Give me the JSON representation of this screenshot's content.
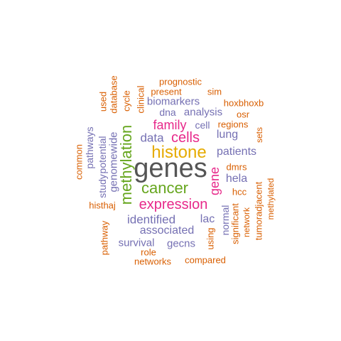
{
  "colors": {
    "orange": "#d95f02",
    "purple": "#7570b3",
    "magenta": "#e7298a",
    "green": "#66a61e",
    "gold": "#e6ab02",
    "gray": "#555555"
  },
  "words": [
    {
      "id": "genes",
      "text": "genes",
      "color": "gray"
    },
    {
      "id": "histone",
      "text": "histone",
      "color": "gold"
    },
    {
      "id": "cancer",
      "text": "cancer",
      "color": "green"
    },
    {
      "id": "methylation",
      "text": "methylation",
      "color": "green"
    },
    {
      "id": "expression",
      "text": "expression",
      "color": "magenta"
    },
    {
      "id": "cells",
      "text": "cells",
      "color": "magenta"
    },
    {
      "id": "family",
      "text": "family",
      "color": "magenta"
    },
    {
      "id": "gene",
      "text": "gene",
      "color": "magenta"
    },
    {
      "id": "data",
      "text": "data",
      "color": "purple"
    },
    {
      "id": "patients",
      "text": "patients",
      "color": "purple"
    },
    {
      "id": "identified",
      "text": "identified",
      "color": "purple"
    },
    {
      "id": "associated",
      "text": "associated",
      "color": "purple"
    },
    {
      "id": "biomarkers",
      "text": "biomarkers",
      "color": "purple"
    },
    {
      "id": "analysis",
      "text": "analysis",
      "color": "purple"
    },
    {
      "id": "lung",
      "text": "lung",
      "color": "purple"
    },
    {
      "id": "hela",
      "text": "hela",
      "color": "purple"
    },
    {
      "id": "genomewide",
      "text": "genomewide",
      "color": "purple"
    },
    {
      "id": "survival",
      "text": "survival",
      "color": "purple"
    },
    {
      "id": "gecns",
      "text": "gecns",
      "color": "purple"
    },
    {
      "id": "lac",
      "text": "lac",
      "color": "purple"
    },
    {
      "id": "dna",
      "text": "dna",
      "color": "purple"
    },
    {
      "id": "cell",
      "text": "cell",
      "color": "purple"
    },
    {
      "id": "pathways",
      "text": "pathways",
      "color": "purple"
    },
    {
      "id": "potential",
      "text": "potential",
      "color": "purple"
    },
    {
      "id": "study",
      "text": "study",
      "color": "purple"
    },
    {
      "id": "normal",
      "text": "normal",
      "color": "purple"
    },
    {
      "id": "prognostic",
      "text": "prognostic",
      "color": "orange"
    },
    {
      "id": "present",
      "text": "present",
      "color": "orange"
    },
    {
      "id": "sim",
      "text": "sim",
      "color": "orange"
    },
    {
      "id": "hoxbhoxb",
      "text": "hoxbhoxb",
      "color": "orange"
    },
    {
      "id": "osr",
      "text": "osr",
      "color": "orange"
    },
    {
      "id": "regions",
      "text": "regions",
      "color": "orange"
    },
    {
      "id": "sets",
      "text": "sets",
      "color": "orange"
    },
    {
      "id": "dmrs",
      "text": "dmrs",
      "color": "orange"
    },
    {
      "id": "hcc",
      "text": "hcc",
      "color": "orange"
    },
    {
      "id": "tumoradjacent",
      "text": "tumoradjacent",
      "color": "orange"
    },
    {
      "id": "methylated",
      "text": "methylated",
      "color": "orange"
    },
    {
      "id": "network",
      "text": "network",
      "color": "orange"
    },
    {
      "id": "significant",
      "text": "significant",
      "color": "orange"
    },
    {
      "id": "using",
      "text": "using",
      "color": "orange"
    },
    {
      "id": "compared",
      "text": "compared",
      "color": "orange"
    },
    {
      "id": "networks",
      "text": "networks",
      "color": "orange"
    },
    {
      "id": "role",
      "text": "role",
      "color": "orange"
    },
    {
      "id": "pathway",
      "text": "pathway",
      "color": "orange"
    },
    {
      "id": "histhaj",
      "text": "histhaj",
      "color": "orange"
    },
    {
      "id": "common",
      "text": "common",
      "color": "orange"
    },
    {
      "id": "used",
      "text": "used",
      "color": "orange"
    },
    {
      "id": "database",
      "text": "database",
      "color": "orange"
    },
    {
      "id": "cycle",
      "text": "cycle",
      "color": "orange"
    },
    {
      "id": "clinical",
      "text": "clinical",
      "color": "orange"
    }
  ]
}
